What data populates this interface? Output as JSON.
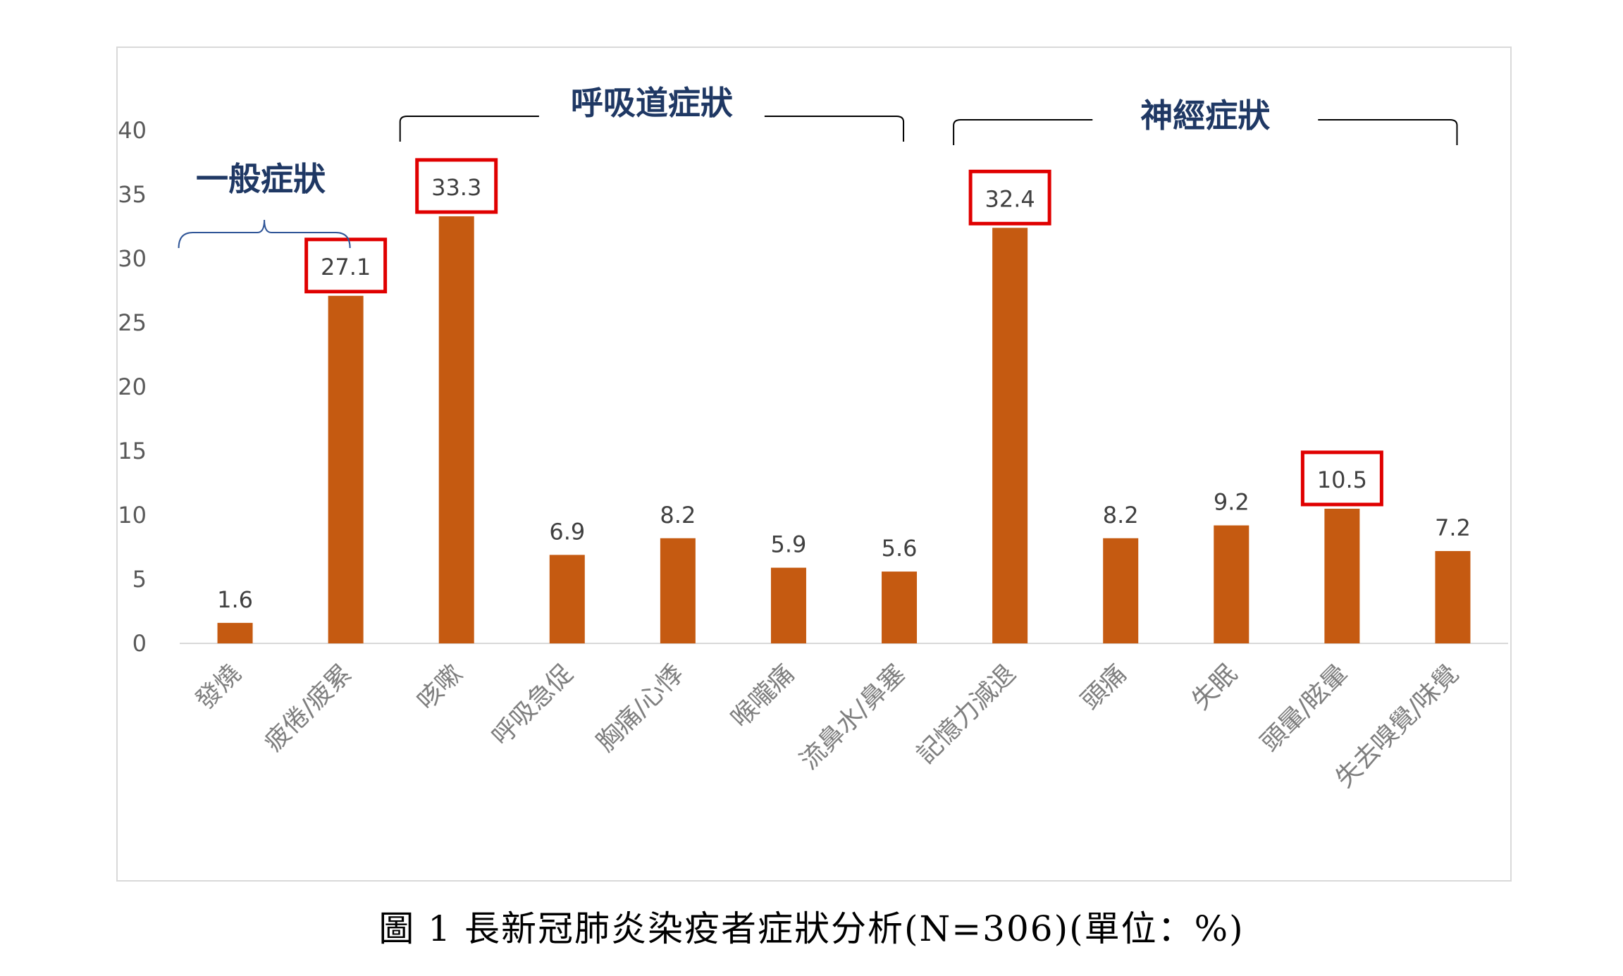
{
  "caption": "圖 1  長新冠肺炎染疫者症狀分析(N=306)(單位：%)",
  "colors": {
    "bar": "#c55a11",
    "highlight": "#e00000",
    "group_text": "#1f3864",
    "axis": "#d9d9d9"
  },
  "chart_data": {
    "type": "bar",
    "categories": [
      "發燒",
      "疲倦/疲累",
      "咳嗽",
      "呼吸急促",
      "胸痛/心悸",
      "喉嚨痛",
      "流鼻水/鼻塞",
      "記憶力減退",
      "頭痛",
      "失眠",
      "頭暈/眩暈",
      "失去嗅覺/味覺"
    ],
    "values": [
      1.6,
      27.1,
      33.3,
      6.9,
      8.2,
      5.9,
      5.6,
      32.4,
      8.2,
      9.2,
      10.5,
      7.2
    ],
    "value_labels": [
      "1.6",
      "27.1",
      "33.3",
      "6.9",
      "8.2",
      "5.9",
      "5.6",
      "32.4",
      "8.2",
      "9.2",
      "10.5",
      "7.2"
    ],
    "highlighted": [
      1,
      2,
      7,
      10
    ],
    "ylim": [
      0,
      40
    ],
    "yticks": [
      "0",
      "5",
      "10",
      "15",
      "20",
      "25",
      "30",
      "35",
      "40"
    ],
    "grid": false,
    "groups": [
      {
        "label": "一般症狀",
        "from": 0,
        "to": 1
      },
      {
        "label": "呼吸道症狀",
        "from": 2,
        "to": 6
      },
      {
        "label": "神經症狀",
        "from": 7,
        "to": 11
      }
    ]
  }
}
